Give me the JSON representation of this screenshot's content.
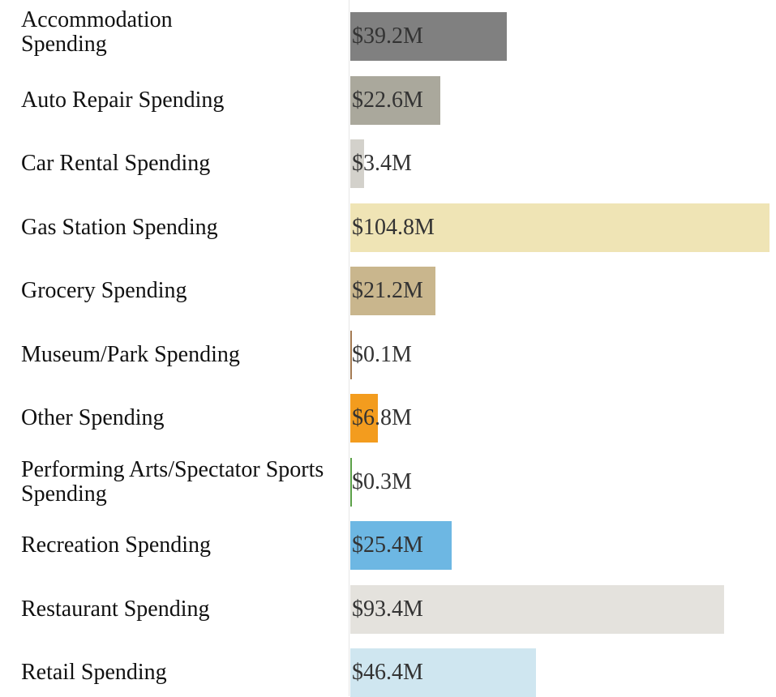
{
  "chart_data": {
    "type": "bar",
    "categories": [
      "Accommodation Spending",
      "Auto Repair Spending",
      "Car Rental Spending",
      "Gas Station Spending",
      "Grocery Spending",
      "Museum/Park Spending",
      "Other Spending",
      "Performing Arts/Spectator Sports Spending",
      "Recreation Spending",
      "Restaurant Spending",
      "Retail Spending"
    ],
    "values": [
      39.2,
      22.6,
      3.4,
      104.8,
      21.2,
      0.1,
      6.8,
      0.3,
      25.4,
      93.4,
      46.4
    ],
    "value_labels": [
      "$39.2M",
      "$22.6M",
      "$3.4M",
      "$104.8M",
      "$21.2M",
      "$0.1M",
      "$6.8M",
      "$0.3M",
      "$25.4M",
      "$93.4M",
      "$46.4M"
    ],
    "colors": [
      "#808080",
      "#aaa89c",
      "#d3d1cb",
      "#efe4b5",
      "#c9b68d",
      "#a47a52",
      "#f39c1e",
      "#5ba048",
      "#6db7e3",
      "#e4e2dd",
      "#cfe6f0"
    ]
  }
}
